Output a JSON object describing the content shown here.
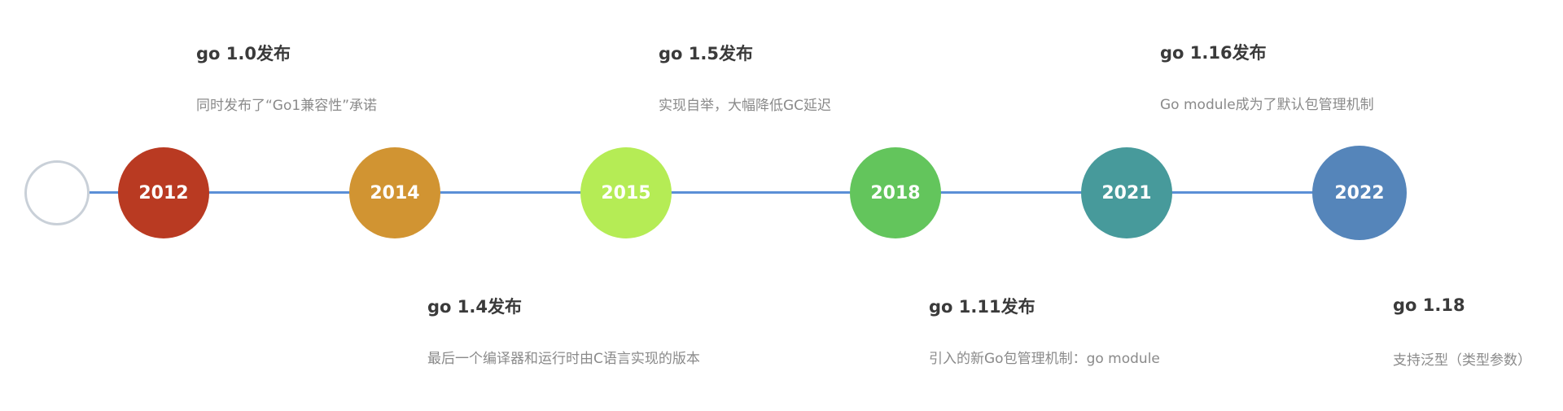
{
  "timeline": {
    "nodes": [
      {
        "year": "2012",
        "color": "#b93a22"
      },
      {
        "year": "2014",
        "color": "#d19432"
      },
      {
        "year": "2015",
        "color": "#b5ec55"
      },
      {
        "year": "2018",
        "color": "#63c55c"
      },
      {
        "year": "2021",
        "color": "#479a9b"
      },
      {
        "year": "2022",
        "color": "#5585ba"
      }
    ],
    "axis_color": "#5b8fd6",
    "start_marker_color": "#c9d0d8",
    "events": [
      {
        "title": "go 1.0发布",
        "desc": "同时发布了“Go1兼容性”承诺"
      },
      {
        "title": "go 1.4发布",
        "desc": "最后一个编译器和运行时由C语言实现的版本"
      },
      {
        "title": "go 1.5发布",
        "desc": "实现自举，大幅降低GC延迟"
      },
      {
        "title": "go 1.11发布",
        "desc": "引入的新Go包管理机制：go module"
      },
      {
        "title": "go 1.16发布",
        "desc": "Go module成为了默认包管理机制"
      },
      {
        "title": "go 1.18",
        "desc": "支持泛型（类型参数）"
      }
    ]
  }
}
